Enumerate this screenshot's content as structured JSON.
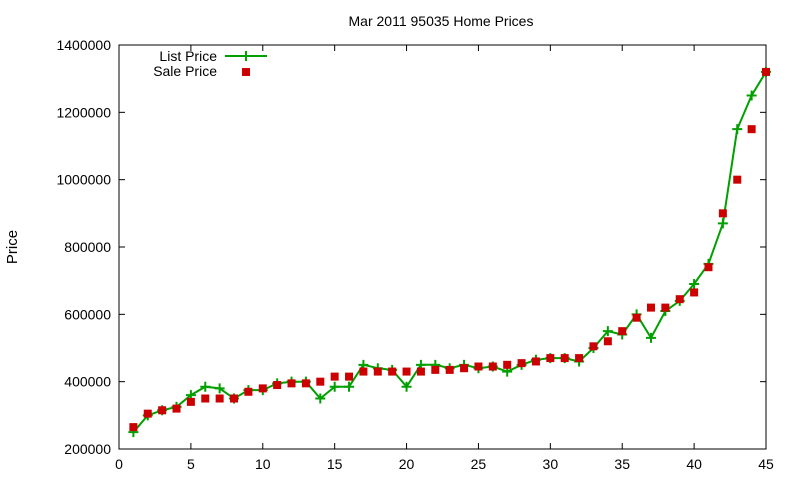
{
  "chart_data": {
    "type": "line",
    "title": "Mar 2011 95035 Home Prices",
    "xlabel": "",
    "ylabel": "Price",
    "xlim": [
      0,
      45
    ],
    "ylim": [
      200000,
      1400000
    ],
    "x_ticks": [
      "0",
      "5",
      "10",
      "15",
      "20",
      "25",
      "30",
      "35",
      "40",
      "45"
    ],
    "y_ticks": [
      "200000",
      "400000",
      "600000",
      "800000",
      "1000000",
      "1200000",
      "1400000"
    ],
    "grid": false,
    "legend_position": "top-left",
    "x": [
      1,
      2,
      3,
      4,
      5,
      6,
      7,
      8,
      9,
      10,
      11,
      12,
      13,
      14,
      15,
      16,
      17,
      18,
      19,
      20,
      21,
      22,
      23,
      24,
      25,
      26,
      27,
      28,
      29,
      30,
      31,
      32,
      33,
      34,
      35,
      36,
      37,
      38,
      39,
      40,
      41,
      42,
      43,
      44,
      45
    ],
    "series": [
      {
        "name": "List Price",
        "style": "line-plus",
        "color": "#00a000",
        "values": [
          250000,
          300000,
          315000,
          325000,
          360000,
          385000,
          380000,
          350000,
          375000,
          375000,
          395000,
          400000,
          400000,
          350000,
          385000,
          385000,
          450000,
          440000,
          435000,
          385000,
          450000,
          450000,
          440000,
          450000,
          440000,
          445000,
          430000,
          450000,
          465000,
          470000,
          470000,
          460000,
          500000,
          550000,
          540000,
          600000,
          530000,
          610000,
          640000,
          690000,
          750000,
          870000,
          1150000,
          1250000,
          1320000
        ]
      },
      {
        "name": "Sale Price",
        "style": "square-points",
        "color": "#cc0000",
        "values": [
          265000,
          305000,
          315000,
          320000,
          340000,
          350000,
          350000,
          350000,
          370000,
          380000,
          390000,
          395000,
          395000,
          400000,
          415000,
          415000,
          430000,
          430000,
          430000,
          430000,
          430000,
          435000,
          435000,
          440000,
          445000,
          445000,
          450000,
          455000,
          460000,
          470000,
          470000,
          470000,
          505000,
          520000,
          550000,
          590000,
          620000,
          620000,
          645000,
          665000,
          740000,
          900000,
          1000000,
          1150000,
          1320000
        ]
      }
    ]
  }
}
